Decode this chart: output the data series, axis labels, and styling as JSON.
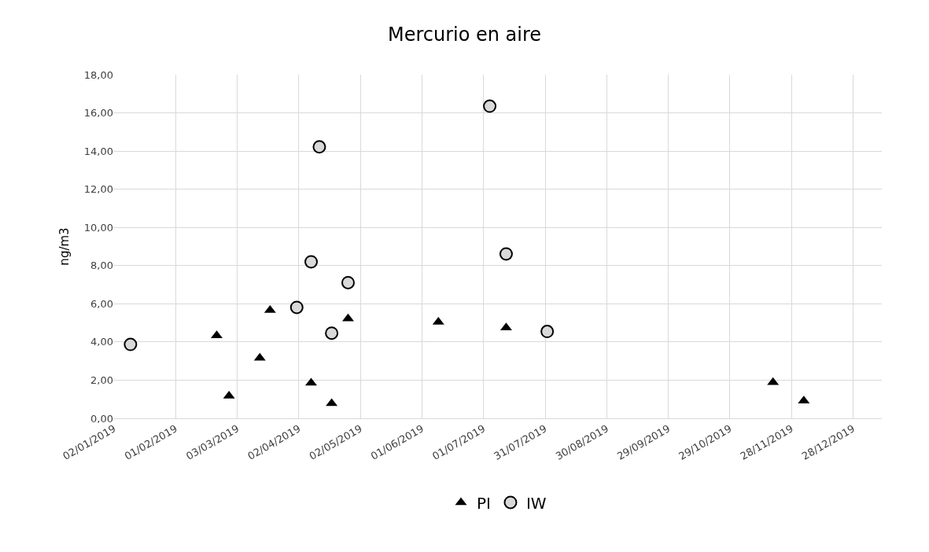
{
  "chart_data": {
    "type": "scatter",
    "title": "Mercurio en aire",
    "ylabel": "ng/m3",
    "xlim": [
      "2019-01-02",
      "2020-01-11"
    ],
    "xticks": [
      {
        "value": "2019-01-02",
        "label": "02/01/2019"
      },
      {
        "value": "2019-02-01",
        "label": "01/02/2019"
      },
      {
        "value": "2019-03-03",
        "label": "03/03/2019"
      },
      {
        "value": "2019-04-02",
        "label": "02/04/2019"
      },
      {
        "value": "2019-05-02",
        "label": "02/05/2019"
      },
      {
        "value": "2019-06-01",
        "label": "01/06/2019"
      },
      {
        "value": "2019-07-01",
        "label": "01/07/2019"
      },
      {
        "value": "2019-07-31",
        "label": "31/07/2019"
      },
      {
        "value": "2019-08-30",
        "label": "30/08/2019"
      },
      {
        "value": "2019-09-29",
        "label": "29/09/2019"
      },
      {
        "value": "2019-10-29",
        "label": "29/10/2019"
      },
      {
        "value": "2019-11-28",
        "label": "28/11/2019"
      },
      {
        "value": "2019-12-28",
        "label": "28/12/2019"
      }
    ],
    "ylim": [
      0,
      18
    ],
    "yticks": [
      {
        "value": 0,
        "label": "0,00"
      },
      {
        "value": 2,
        "label": "2,00"
      },
      {
        "value": 4,
        "label": "4,00"
      },
      {
        "value": 6,
        "label": "6,00"
      },
      {
        "value": 8,
        "label": "8,00"
      },
      {
        "value": 10,
        "label": "10,00"
      },
      {
        "value": 12,
        "label": "12,00"
      },
      {
        "value": 14,
        "label": "14,00"
      },
      {
        "value": 16,
        "label": "16,00"
      },
      {
        "value": 18,
        "label": "18,00"
      }
    ],
    "grid": true,
    "legend": "bottom",
    "series": [
      {
        "name": "PI",
        "color": "#000000",
        "marker": "triangle",
        "x": [
          "2019-02-21",
          "2019-02-27",
          "2019-03-14",
          "2019-03-19",
          "2019-04-08",
          "2019-04-18",
          "2019-04-26",
          "2019-06-09",
          "2019-07-12",
          "2019-11-19",
          "2019-12-04"
        ],
        "values": [
          4.34,
          1.17,
          3.16,
          5.66,
          1.85,
          0.78,
          5.22,
          5.05,
          4.75,
          1.88,
          0.92
        ]
      },
      {
        "name": "IW",
        "color": "#d9d9d9",
        "marker": "circle",
        "x": [
          "2019-01-10",
          "2019-04-01",
          "2019-04-08",
          "2019-04-12",
          "2019-04-18",
          "2019-04-26",
          "2019-07-04",
          "2019-07-12",
          "2019-08-01"
        ],
        "values": [
          3.87,
          5.81,
          8.2,
          14.22,
          4.46,
          7.11,
          16.35,
          8.61,
          4.55
        ]
      }
    ]
  }
}
